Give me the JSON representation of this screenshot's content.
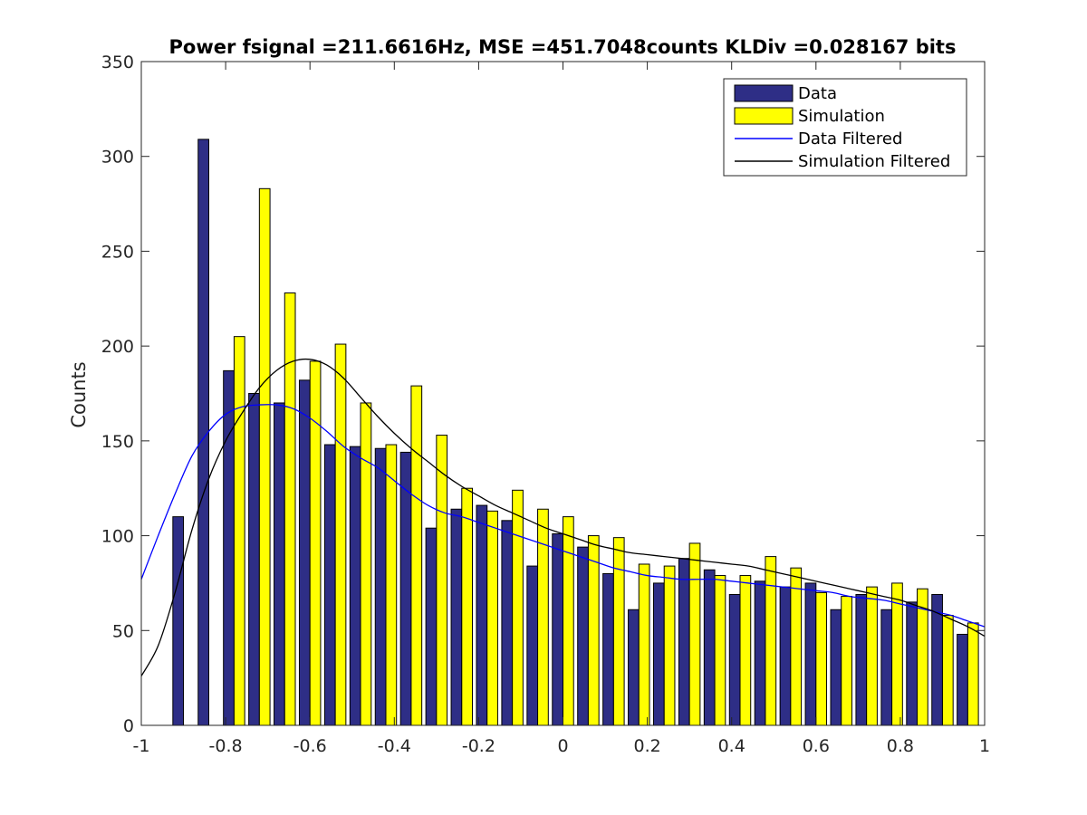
{
  "colors": {
    "data_bar": "#2e2e86",
    "simulation_bar": "#ffff00",
    "data_filtered_line": "#0000ff",
    "simulation_filtered_line": "#000000",
    "axis": "#262626"
  },
  "chart_data": {
    "type": "bar",
    "title": "Power fsignal =211.6616Hz, MSE =451.7048counts KLDiv =0.028167 bits",
    "xlabel": "",
    "ylabel": "Counts",
    "xlim": [
      -1,
      1
    ],
    "ylim": [
      0,
      350
    ],
    "grid": false,
    "legend_position": "top-right",
    "x_ticks": [
      -1,
      -0.8,
      -0.6,
      -0.4,
      -0.2,
      0,
      0.2,
      0.4,
      0.6,
      0.8,
      1
    ],
    "x_tick_labels": [
      "-1",
      "-0.8",
      "-0.6",
      "-0.4",
      "-0.2",
      "0",
      "0.2",
      "0.4",
      "0.6",
      "0.8",
      "1"
    ],
    "y_ticks": [
      0,
      50,
      100,
      150,
      200,
      250,
      300,
      350
    ],
    "y_tick_labels": [
      "0",
      "50",
      "100",
      "150",
      "200",
      "250",
      "300",
      "350"
    ],
    "x": [
      -0.9,
      -0.84,
      -0.78,
      -0.72,
      -0.66,
      -0.6,
      -0.54,
      -0.48,
      -0.42,
      -0.36,
      -0.3,
      -0.24,
      -0.18,
      -0.12,
      -0.06,
      0,
      0.06,
      0.12,
      0.18,
      0.24,
      0.3,
      0.36,
      0.42,
      0.48,
      0.54,
      0.6,
      0.66,
      0.72,
      0.78,
      0.84,
      0.9,
      0.96
    ],
    "series": [
      {
        "name": "Data",
        "type": "bar",
        "values": [
          110,
          309,
          187,
          175,
          170,
          182,
          148,
          147,
          146,
          144,
          104,
          114,
          116,
          108,
          84,
          101,
          94,
          80,
          61,
          75,
          88,
          82,
          69,
          76,
          73,
          75,
          61,
          69,
          61,
          65,
          69,
          48
        ]
      },
      {
        "name": "Simulation",
        "type": "bar",
        "values": [
          0,
          0,
          205,
          283,
          228,
          192,
          201,
          170,
          148,
          179,
          153,
          125,
          113,
          124,
          114,
          110,
          100,
          99,
          85,
          84,
          96,
          79,
          79,
          89,
          83,
          70,
          68,
          73,
          75,
          72,
          58,
          54
        ]
      },
      {
        "name": "Data Filtered",
        "type": "line",
        "x": [
          -1,
          -0.96,
          -0.92,
          -0.88,
          -0.84,
          -0.8,
          -0.76,
          -0.72,
          -0.68,
          -0.64,
          -0.6,
          -0.56,
          -0.52,
          -0.48,
          -0.44,
          -0.4,
          -0.36,
          -0.32,
          -0.28,
          -0.24,
          -0.2,
          -0.16,
          -0.12,
          -0.08,
          -0.04,
          0,
          0.04,
          0.08,
          0.12,
          0.16,
          0.2,
          0.24,
          0.28,
          0.32,
          0.36,
          0.4,
          0.44,
          0.48,
          0.52,
          0.56,
          0.6,
          0.64,
          0.68,
          0.72,
          0.76,
          0.8,
          0.84,
          0.88,
          0.92,
          0.96,
          1
        ],
        "values": [
          77,
          100,
          122,
          142,
          155,
          164,
          168,
          169,
          169,
          167,
          162,
          155,
          147,
          141,
          136,
          129,
          122,
          116,
          112,
          110,
          107,
          104,
          101,
          98,
          95,
          92,
          89,
          86,
          83,
          81,
          79,
          78,
          77,
          77,
          77,
          76,
          75,
          74,
          73,
          72,
          71,
          70,
          68,
          67,
          66,
          64,
          62,
          60,
          58,
          55,
          52
        ]
      },
      {
        "name": "Simulation Filtered",
        "type": "line",
        "x": [
          -1,
          -0.96,
          -0.92,
          -0.88,
          -0.84,
          -0.8,
          -0.76,
          -0.72,
          -0.68,
          -0.64,
          -0.6,
          -0.56,
          -0.52,
          -0.48,
          -0.44,
          -0.4,
          -0.36,
          -0.32,
          -0.28,
          -0.24,
          -0.2,
          -0.16,
          -0.12,
          -0.08,
          -0.04,
          0,
          0.04,
          0.08,
          0.12,
          0.16,
          0.2,
          0.24,
          0.28,
          0.32,
          0.36,
          0.4,
          0.44,
          0.48,
          0.52,
          0.56,
          0.6,
          0.64,
          0.68,
          0.72,
          0.76,
          0.8,
          0.84,
          0.88,
          0.92,
          0.96,
          1
        ],
        "values": [
          26,
          42,
          70,
          103,
          130,
          150,
          165,
          178,
          187,
          192,
          193,
          190,
          183,
          173,
          163,
          154,
          146,
          139,
          132,
          126,
          121,
          116,
          112,
          108,
          104,
          101,
          98,
          95,
          93,
          91,
          90,
          89,
          88,
          87,
          86,
          85,
          84,
          82,
          80,
          78,
          76,
          74,
          72,
          70,
          68,
          66,
          63,
          60,
          56,
          52,
          47
        ]
      }
    ]
  }
}
